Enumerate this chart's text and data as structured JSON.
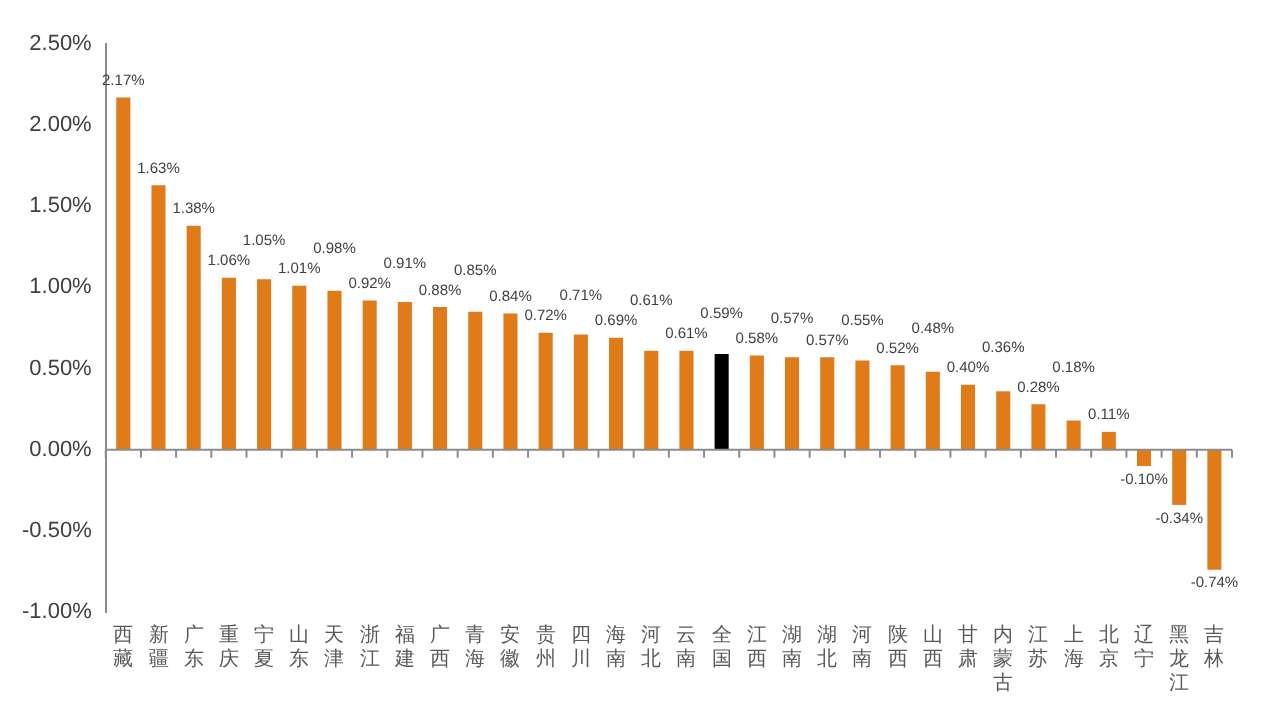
{
  "chart_data": {
    "type": "bar",
    "categories": [
      "西藏",
      "新疆",
      "广东",
      "重庆",
      "宁夏",
      "山东",
      "天津",
      "浙江",
      "福建",
      "广西",
      "青海",
      "安徽",
      "贵州",
      "四川",
      "海南",
      "河北",
      "云南",
      "全国",
      "江西",
      "湖南",
      "湖北",
      "河南",
      "陕西",
      "山西",
      "甘肃",
      "内蒙古",
      "江苏",
      "上海",
      "北京",
      "辽宁",
      "黑龙江",
      "吉林"
    ],
    "values": [
      2.17,
      1.63,
      1.38,
      1.06,
      1.05,
      1.01,
      0.98,
      0.92,
      0.91,
      0.88,
      0.85,
      0.84,
      0.72,
      0.71,
      0.69,
      0.61,
      0.61,
      0.59,
      0.58,
      0.57,
      0.57,
      0.55,
      0.52,
      0.48,
      0.4,
      0.36,
      0.28,
      0.18,
      0.11,
      -0.1,
      -0.34,
      -0.74
    ],
    "value_labels": [
      "2.17%",
      "1.63%",
      "1.38%",
      "1.06%",
      "1.05%",
      "1.01%",
      "0.98%",
      "0.92%",
      "0.91%",
      "0.88%",
      "0.85%",
      "0.84%",
      "0.72%",
      "0.71%",
      "0.69%",
      "0.61%",
      "0.61%",
      "0.59%",
      "0.58%",
      "0.57%",
      "0.57%",
      "0.55%",
      "0.52%",
      "0.48%",
      "0.40%",
      "0.36%",
      "0.28%",
      "0.18%",
      "0.11%",
      "-0.10%",
      "-0.34%",
      "-0.74%"
    ],
    "colors": [
      "#e07b1a",
      "#e07b1a",
      "#e07b1a",
      "#e07b1a",
      "#e07b1a",
      "#e07b1a",
      "#e07b1a",
      "#e07b1a",
      "#e07b1a",
      "#e07b1a",
      "#e07b1a",
      "#e07b1a",
      "#e07b1a",
      "#e07b1a",
      "#e07b1a",
      "#e07b1a",
      "#e07b1a",
      "#000000",
      "#e07b1a",
      "#e07b1a",
      "#e07b1a",
      "#e07b1a",
      "#e07b1a",
      "#e07b1a",
      "#e07b1a",
      "#e07b1a",
      "#e07b1a",
      "#e07b1a",
      "#e07b1a",
      "#e07b1a",
      "#e07b1a",
      "#e07b1a"
    ],
    "ylim": [
      -1,
      2.5
    ],
    "yticks": [
      {
        "value": -1,
        "label": "-1.00%"
      },
      {
        "value": -0.5,
        "label": "-0.50%"
      },
      {
        "value": 0,
        "label": "0.00%"
      },
      {
        "value": 0.5,
        "label": "0.50%"
      },
      {
        "value": 1,
        "label": "1.00%"
      },
      {
        "value": 1.5,
        "label": "1.50%"
      },
      {
        "value": 2,
        "label": "2.00%"
      },
      {
        "value": 2.5,
        "label": "2.50%"
      }
    ],
    "ref_lines": [
      {
        "axis": "y",
        "value": 0,
        "color": "#8c8c8c"
      }
    ],
    "grid": false,
    "legend": false
  }
}
